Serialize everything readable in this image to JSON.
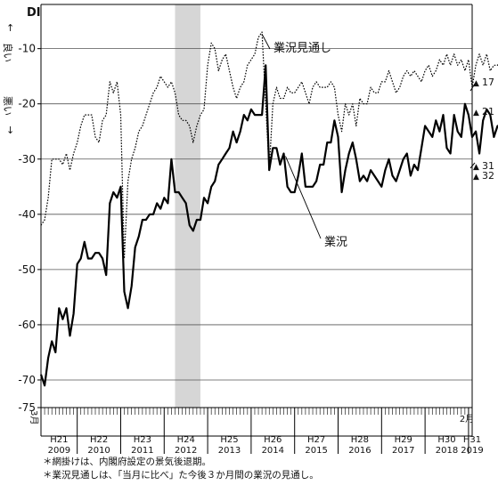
{
  "chart_data": {
    "type": "line",
    "ylabel": "DI",
    "y_direction_up": "良い",
    "y_direction_down": "悪い",
    "arrow_up": "↑",
    "arrow_down": "↓",
    "ylim": [
      -75,
      -2
    ],
    "yticks": [
      -10,
      -20,
      -30,
      -40,
      -50,
      -60,
      -70,
      -75
    ],
    "x_start": "2009-03",
    "x_end": "2019-02",
    "start_month_label": "3月",
    "end_month_label": "2月",
    "year_labels": [
      {
        "era": "H21",
        "year": "2009"
      },
      {
        "era": "H22",
        "year": "2010"
      },
      {
        "era": "H23",
        "year": "2011"
      },
      {
        "era": "H24",
        "year": "2012"
      },
      {
        "era": "H25",
        "year": "2013"
      },
      {
        "era": "H26",
        "year": "2014"
      },
      {
        "era": "H27",
        "year": "2015"
      },
      {
        "era": "H28",
        "year": "2016"
      },
      {
        "era": "H29",
        "year": "2017"
      },
      {
        "era": "H30",
        "year": "2018"
      },
      {
        "era": "H31",
        "year": "2019"
      }
    ],
    "recession_shading": {
      "from": "2012-04",
      "to": "2012-11"
    },
    "series": [
      {
        "name": "業況",
        "style": "solid",
        "start": "2009-03",
        "values": [
          -69,
          -71,
          -66,
          -63,
          -65,
          -57,
          -59,
          -57,
          -62,
          -58,
          -49,
          -48,
          -45,
          -48,
          -48,
          -47,
          -47,
          -48,
          -51,
          -38,
          -36,
          -37,
          -35,
          -54,
          -57,
          -53,
          -46,
          -44,
          -41,
          -41,
          -40,
          -40,
          -38,
          -39,
          -37,
          -38,
          -30,
          -36,
          -36,
          -37,
          -38,
          -42,
          -43,
          -41,
          -41,
          -37,
          -38,
          -35,
          -34,
          -31,
          -30,
          -29,
          -28,
          -25,
          -27,
          -25,
          -22,
          -23,
          -21,
          -22,
          -22,
          -22,
          -13,
          -32,
          -28,
          -28,
          -31,
          -29,
          -35,
          -36,
          -36,
          -33,
          -29,
          -35,
          -35,
          -35,
          -34,
          -31,
          -31,
          -27,
          -27,
          -23,
          -26,
          -36,
          -32,
          -29,
          -27,
          -30,
          -34,
          -33,
          -34,
          -32,
          -33,
          -34,
          -35,
          -32,
          -30,
          -33,
          -34,
          -32,
          -30,
          -29,
          -33,
          -31,
          -32,
          -28,
          -24,
          -25,
          -26,
          -23,
          -25,
          -22,
          -28,
          -29,
          -22,
          -25,
          -26,
          -20,
          -22,
          -26,
          -25,
          -29,
          -23,
          -21,
          -22,
          -26,
          -24,
          -24,
          -28,
          -23,
          -22,
          -32,
          -31
        ]
      },
      {
        "name": "業況見通し",
        "style": "dotted",
        "start": "2009-03",
        "values": [
          -42,
          -41,
          -37,
          -30,
          -30,
          -30,
          -31,
          -29,
          -32,
          -29,
          -27,
          -24,
          -22,
          -22,
          -22,
          -26,
          -27,
          -23,
          -22,
          -16,
          -18,
          -16,
          -22,
          -48,
          -34,
          -30,
          -28,
          -25,
          -24,
          -22,
          -20,
          -18,
          -17,
          -15,
          -16,
          -17,
          -16,
          -18,
          -22,
          -23,
          -23,
          -24,
          -27,
          -24,
          -22,
          -21,
          -13,
          -9,
          -10,
          -14,
          -12,
          -11,
          -14,
          -17,
          -19,
          -17,
          -16,
          -13,
          -12,
          -11,
          -8,
          -7,
          -20,
          -32,
          -20,
          -17,
          -19,
          -19,
          -17,
          -18,
          -18,
          -17,
          -16,
          -18,
          -20,
          -17,
          -16,
          -17,
          -17,
          -17,
          -16,
          -17,
          -22,
          -25,
          -20,
          -22,
          -20,
          -24,
          -19,
          -20,
          -20,
          -17,
          -18,
          -18,
          -16,
          -16,
          -14,
          -16,
          -18,
          -17,
          -15,
          -14,
          -15,
          -14,
          -15,
          -16,
          -14,
          -13,
          -15,
          -14,
          -12,
          -13,
          -11,
          -13,
          -11,
          -13,
          -12,
          -14,
          -12,
          -17,
          -13,
          -11,
          -13,
          -11,
          -14,
          -13,
          -13,
          -12,
          -15,
          -20,
          -21,
          -17,
          -16
        ]
      }
    ],
    "annotations": [
      {
        "text": "業況見通し",
        "target_series": "業況見通し",
        "at": "2014-03"
      },
      {
        "text": "業況",
        "target_series": "業況",
        "at": "2014-10"
      }
    ],
    "end_labels": [
      {
        "text": "17",
        "value": -17,
        "series": "業況見通し",
        "marker": "▲",
        "direction": "up"
      },
      {
        "text": "21",
        "value": -21,
        "series": "業況",
        "marker": "▲",
        "direction": "up"
      },
      {
        "text": "31",
        "value": -31,
        "series": "業況",
        "marker": "▲",
        "direction": "up"
      },
      {
        "text": "32",
        "value": -32,
        "series": "業況",
        "marker": "▲",
        "direction": "down"
      }
    ],
    "grid": true,
    "legend": "none"
  },
  "notes": [
    "＊網掛けは、内閣府設定の景気後退期。",
    "＊業況見通しは、「当月に比べ」た今後３か月間の業況の見通し。"
  ]
}
